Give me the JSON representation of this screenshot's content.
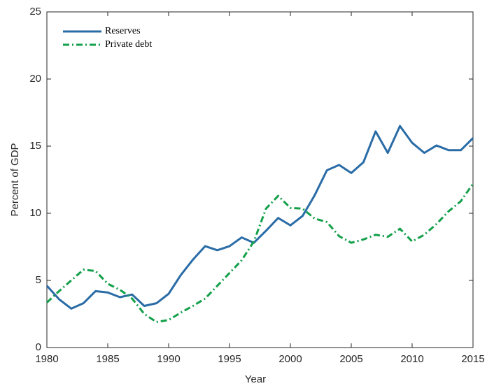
{
  "chart_data": {
    "type": "line",
    "x_label": "Year",
    "y_label": "Percent of GDP",
    "x": [
      1980,
      1981,
      1982,
      1983,
      1984,
      1985,
      1986,
      1987,
      1988,
      1989,
      1990,
      1991,
      1992,
      1993,
      1994,
      1995,
      1996,
      1997,
      1998,
      1999,
      2000,
      2001,
      2002,
      2003,
      2004,
      2005,
      2006,
      2007,
      2008,
      2009,
      2010,
      2011,
      2012,
      2013,
      2014,
      2015
    ],
    "series": [
      {
        "name": "Reserves",
        "color": "#2a6ca6",
        "style": "solid",
        "values": [
          4.6,
          3.6,
          2.9,
          3.3,
          4.2,
          4.1,
          3.75,
          3.95,
          3.1,
          3.3,
          4.0,
          5.4,
          6.55,
          7.55,
          7.25,
          7.55,
          8.2,
          7.8,
          8.7,
          9.65,
          9.1,
          9.8,
          11.35,
          13.2,
          13.6,
          13.0,
          13.8,
          16.1,
          14.5,
          16.5,
          15.25,
          14.5,
          15.05,
          14.7,
          14.7,
          15.6
        ]
      },
      {
        "name": "Private debt",
        "color": "#14a04a",
        "style": "dashdot",
        "values": [
          3.35,
          4.2,
          5.0,
          5.8,
          5.7,
          4.75,
          4.3,
          3.65,
          2.5,
          1.9,
          2.05,
          2.6,
          3.1,
          3.65,
          4.6,
          5.55,
          6.5,
          7.9,
          10.35,
          11.3,
          10.4,
          10.35,
          9.6,
          9.35,
          8.3,
          7.8,
          8.05,
          8.4,
          8.25,
          8.85,
          7.9,
          8.4,
          9.2,
          10.15,
          10.9,
          12.2
        ]
      }
    ],
    "xlim": [
      1980,
      2015
    ],
    "xticks": [
      1980,
      1985,
      1990,
      1995,
      2000,
      2005,
      2010,
      2015
    ],
    "ylim": [
      0,
      25
    ],
    "yticks": [
      0,
      5,
      10,
      15,
      20,
      25
    ],
    "grid": false,
    "legend": "top-left"
  }
}
